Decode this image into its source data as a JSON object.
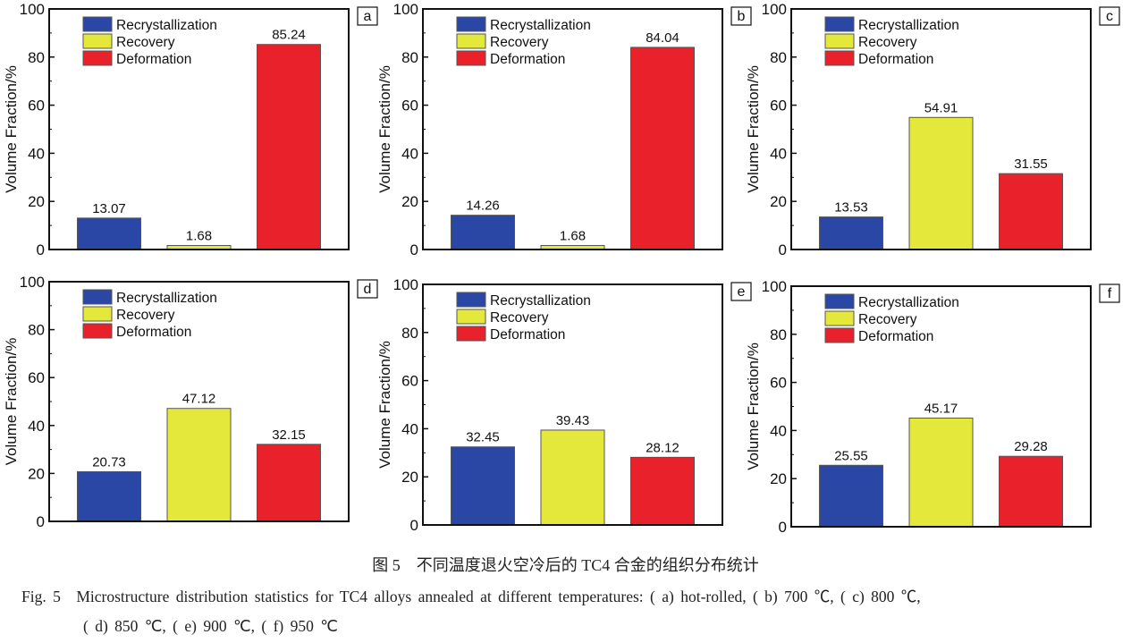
{
  "chart_data": [
    {
      "type": "bar",
      "panel_label": "a",
      "ylabel": "Volume Fraction/%",
      "ylim": [
        0,
        100
      ],
      "yticks": [
        0,
        20,
        40,
        60,
        80,
        100
      ],
      "categories": [
        "Recrystallization",
        "Recovery",
        "Deformation"
      ],
      "values": [
        13.07,
        1.68,
        85.24
      ],
      "data_labels": [
        "13.07",
        "1.68",
        "85.24"
      ],
      "legend": "top-left"
    },
    {
      "type": "bar",
      "panel_label": "b",
      "ylabel": "Volume Fraction/%",
      "ylim": [
        0,
        100
      ],
      "yticks": [
        0,
        20,
        40,
        60,
        80,
        100
      ],
      "categories": [
        "Recrystallization",
        "Recovery",
        "Deformation"
      ],
      "values": [
        14.26,
        1.68,
        84.04
      ],
      "data_labels": [
        "14.26",
        "1.68",
        "84.04"
      ],
      "legend": "top-left"
    },
    {
      "type": "bar",
      "panel_label": "c",
      "ylabel": "Volume Fraction/%",
      "ylim": [
        0,
        100
      ],
      "yticks": [
        0,
        20,
        40,
        60,
        80,
        100
      ],
      "categories": [
        "Recrystallization",
        "Recovery",
        "Deformation"
      ],
      "values": [
        13.53,
        54.91,
        31.55
      ],
      "data_labels": [
        "13.53",
        "54.91",
        "31.55"
      ],
      "legend": "top-left"
    },
    {
      "type": "bar",
      "panel_label": "d",
      "ylabel": "Volume Fraction/%",
      "ylim": [
        0,
        100
      ],
      "yticks": [
        0,
        20,
        40,
        60,
        80,
        100
      ],
      "categories": [
        "Recrystallization",
        "Recovery",
        "Deformation"
      ],
      "values": [
        20.73,
        47.12,
        32.15
      ],
      "data_labels": [
        "20.73",
        "47.12",
        "32.15"
      ],
      "legend": "top-left"
    },
    {
      "type": "bar",
      "panel_label": "e",
      "ylabel": "Volume Fraction/%",
      "ylim": [
        0,
        100
      ],
      "yticks": [
        0,
        20,
        40,
        60,
        80,
        100
      ],
      "categories": [
        "Recrystallization",
        "Recovery",
        "Deformation"
      ],
      "values": [
        32.45,
        39.43,
        28.12
      ],
      "data_labels": [
        "32.45",
        "39.43",
        "28.12"
      ],
      "legend": "top-left"
    },
    {
      "type": "bar",
      "panel_label": "f",
      "ylabel": "Volume Fraction/%",
      "ylim": [
        0,
        100
      ],
      "yticks": [
        0,
        20,
        40,
        60,
        80,
        100
      ],
      "categories": [
        "Recrystallization",
        "Recovery",
        "Deformation"
      ],
      "values": [
        25.55,
        45.17,
        29.28
      ],
      "data_labels": [
        "25.55",
        "45.17",
        "29.28"
      ],
      "legend": "top-left"
    }
  ],
  "colors": {
    "Recrystallization": "#2b47a6",
    "Recovery": "#e3e83a",
    "Deformation": "#e8212b"
  },
  "caption": {
    "cn": "图 5　不同温度退火空冷后的 TC4 合金的组织分布统计",
    "en_line1": "Fig. 5　Microstructure distribution statistics for TC4 alloys annealed at different temperatures: ( a)  hot-rolled, ( b)  700 ℃, ( c)  800 ℃,",
    "en_line2": "( d)  850 ℃, ( e)  900 ℃, ( f)  950 ℃"
  }
}
